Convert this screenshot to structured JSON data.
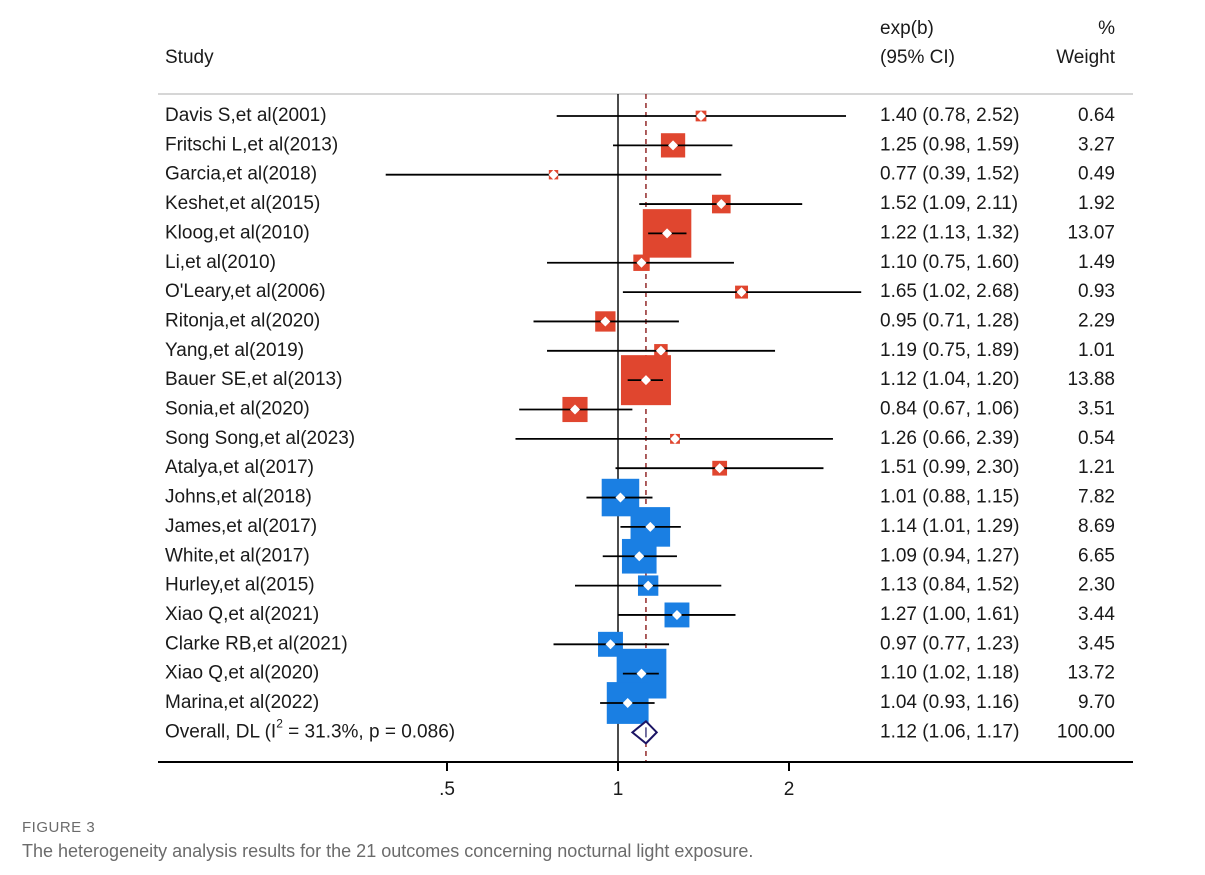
{
  "headers": {
    "study": "Study",
    "effect_line1": "exp(b)",
    "effect_line2": "(95% CI)",
    "weight_line1": "%",
    "weight_line2": "Weight"
  },
  "figure_label": "FIGURE 3",
  "caption": "The heterogeneity analysis results for the 21 outcomes concerning nocturnal light exposure.",
  "colors": {
    "group_a": "#e0462f",
    "group_b": "#1a7fe3",
    "ref_line": "#8b1a1a",
    "overall": "#1b1464"
  },
  "chart_data": {
    "type": "forest",
    "x_scale": "log",
    "xlim": [
      0.27,
      2.8
    ],
    "x_ticks": [
      0.5,
      1,
      2
    ],
    "x_tick_labels": [
      ".5",
      "1",
      "2"
    ],
    "null_line": 1,
    "overall_line": 1.12,
    "studies": [
      {
        "label": "Davis S,et al(2001)",
        "es": 1.4,
        "lo": 0.78,
        "hi": 2.52,
        "weight": 0.64,
        "ci_text": "1.40 (0.78, 2.52)",
        "w_text": "0.64",
        "group": "a"
      },
      {
        "label": "Fritschi L,et al(2013)",
        "es": 1.25,
        "lo": 0.98,
        "hi": 1.59,
        "weight": 3.27,
        "ci_text": "1.25 (0.98, 1.59)",
        "w_text": "3.27",
        "group": "a"
      },
      {
        "label": "Garcia,et al(2018)",
        "es": 0.77,
        "lo": 0.39,
        "hi": 1.52,
        "weight": 0.49,
        "ci_text": "0.77 (0.39, 1.52)",
        "w_text": "0.49",
        "group": "a"
      },
      {
        "label": "Keshet,et al(2015)",
        "es": 1.52,
        "lo": 1.09,
        "hi": 2.11,
        "weight": 1.92,
        "ci_text": "1.52 (1.09, 2.11)",
        "w_text": "1.92",
        "group": "a"
      },
      {
        "label": "Kloog,et al(2010)",
        "es": 1.22,
        "lo": 1.13,
        "hi": 1.32,
        "weight": 13.07,
        "ci_text": "1.22 (1.13, 1.32)",
        "w_text": "13.07",
        "group": "a"
      },
      {
        "label": "Li,et al(2010)",
        "es": 1.1,
        "lo": 0.75,
        "hi": 1.6,
        "weight": 1.49,
        "ci_text": "1.10 (0.75, 1.60)",
        "w_text": "1.49",
        "group": "a"
      },
      {
        "label": "O'Leary,et al(2006)",
        "es": 1.65,
        "lo": 1.02,
        "hi": 2.68,
        "weight": 0.93,
        "ci_text": "1.65 (1.02, 2.68)",
        "w_text": "0.93",
        "group": "a"
      },
      {
        "label": "Ritonja,et al(2020)",
        "es": 0.95,
        "lo": 0.71,
        "hi": 1.28,
        "weight": 2.29,
        "ci_text": "0.95 (0.71, 1.28)",
        "w_text": "2.29",
        "group": "a"
      },
      {
        "label": "Yang,et al(2019)",
        "es": 1.19,
        "lo": 0.75,
        "hi": 1.89,
        "weight": 1.01,
        "ci_text": "1.19 (0.75, 1.89)",
        "w_text": "1.01",
        "group": "a"
      },
      {
        "label": "Bauer SE,et al(2013)",
        "es": 1.12,
        "lo": 1.04,
        "hi": 1.2,
        "weight": 13.88,
        "ci_text": "1.12 (1.04, 1.20)",
        "w_text": "13.88",
        "group": "a"
      },
      {
        "label": "Sonia,et al(2020)",
        "es": 0.84,
        "lo": 0.67,
        "hi": 1.06,
        "weight": 3.51,
        "ci_text": "0.84 (0.67, 1.06)",
        "w_text": "3.51",
        "group": "a"
      },
      {
        "label": "Song Song,et al(2023)",
        "es": 1.26,
        "lo": 0.66,
        "hi": 2.39,
        "weight": 0.54,
        "ci_text": "1.26 (0.66, 2.39)",
        "w_text": "0.54",
        "group": "a"
      },
      {
        "label": "Atalya,et al(2017)",
        "es": 1.51,
        "lo": 0.99,
        "hi": 2.3,
        "weight": 1.21,
        "ci_text": "1.51 (0.99, 2.30)",
        "w_text": "1.21",
        "group": "a"
      },
      {
        "label": "Johns,et al(2018)",
        "es": 1.01,
        "lo": 0.88,
        "hi": 1.15,
        "weight": 7.82,
        "ci_text": "1.01 (0.88, 1.15)",
        "w_text": "7.82",
        "group": "b"
      },
      {
        "label": "James,et al(2017)",
        "es": 1.14,
        "lo": 1.01,
        "hi": 1.29,
        "weight": 8.69,
        "ci_text": "1.14 (1.01, 1.29)",
        "w_text": "8.69",
        "group": "b"
      },
      {
        "label": "White,et al(2017)",
        "es": 1.09,
        "lo": 0.94,
        "hi": 1.27,
        "weight": 6.65,
        "ci_text": "1.09 (0.94, 1.27)",
        "w_text": "6.65",
        "group": "b"
      },
      {
        "label": "Hurley,et al(2015)",
        "es": 1.13,
        "lo": 0.84,
        "hi": 1.52,
        "weight": 2.3,
        "ci_text": "1.13 (0.84, 1.52)",
        "w_text": "2.30",
        "group": "b"
      },
      {
        "label": "Xiao Q,et al(2021)",
        "es": 1.27,
        "lo": 1.0,
        "hi": 1.61,
        "weight": 3.44,
        "ci_text": "1.27 (1.00, 1.61)",
        "w_text": "3.44",
        "group": "b"
      },
      {
        "label": "Clarke RB,et al(2021)",
        "es": 0.97,
        "lo": 0.77,
        "hi": 1.23,
        "weight": 3.45,
        "ci_text": "0.97 (0.77, 1.23)",
        "w_text": "3.45",
        "group": "b"
      },
      {
        "label": "Xiao Q,et al(2020)",
        "es": 1.1,
        "lo": 1.02,
        "hi": 1.18,
        "weight": 13.72,
        "ci_text": "1.10 (1.02, 1.18)",
        "w_text": "13.72",
        "group": "b"
      },
      {
        "label": "Marina,et al(2022)",
        "es": 1.04,
        "lo": 0.93,
        "hi": 1.16,
        "weight": 9.7,
        "ci_text": "1.04 (0.93, 1.16)",
        "w_text": "9.70",
        "group": "b"
      }
    ],
    "overall": {
      "label_prefix": "Overall, DL (I",
      "label_sup": "2",
      "label_suffix": " = 31.3%, p = 0.086)",
      "es": 1.12,
      "lo": 1.06,
      "hi": 1.17,
      "ci_text": "1.12 (1.06, 1.17)",
      "w_text": "100.00"
    }
  }
}
